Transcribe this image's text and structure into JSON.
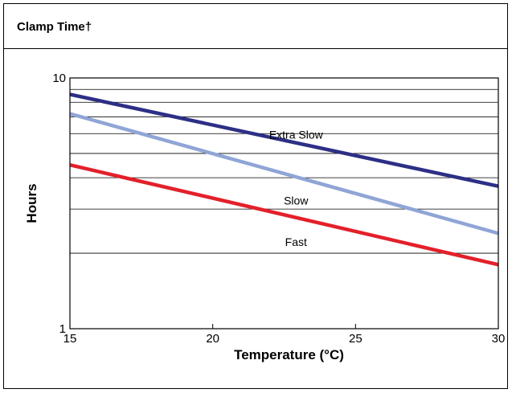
{
  "header": {
    "title": "Clamp Time†"
  },
  "chart_data": {
    "type": "line",
    "title": "Clamp Time†",
    "xlabel": "Temperature (°C)",
    "ylabel": "Hours",
    "xlim": [
      15,
      30
    ],
    "ylim": [
      1,
      10
    ],
    "yscale": "log",
    "grid": true,
    "x_ticks": [
      "15",
      "20",
      "25",
      "30"
    ],
    "y_ticks": [
      "1",
      "10"
    ],
    "series": [
      {
        "name": "Extra Slow",
        "color": "#2d2f86",
        "x": [
          15,
          30
        ],
        "y": [
          8.6,
          3.7
        ]
      },
      {
        "name": "Slow",
        "color": "#8fa5d6",
        "x": [
          15,
          30
        ],
        "y": [
          7.2,
          2.4
        ]
      },
      {
        "name": "Fast",
        "color": "#e3202a",
        "x": [
          15,
          30
        ],
        "y": [
          4.5,
          1.8
        ]
      }
    ]
  }
}
